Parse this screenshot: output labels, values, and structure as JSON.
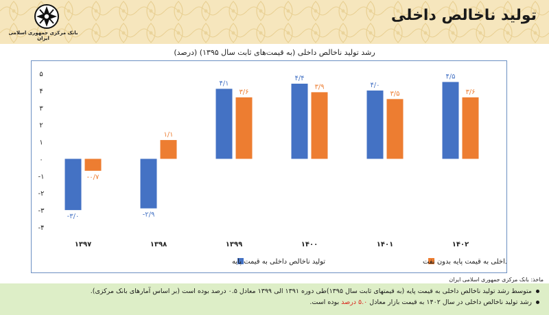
{
  "header": {
    "title": "تولید ناخالص داخلی",
    "bank_name": "بانک مرکزی جمهوری اسلامی ایران"
  },
  "chart_data": {
    "type": "bar",
    "title": "رشد تولید ناخالص داخلی (به قیمت‌های ثابت سال ۱۳۹۵) (درصد)",
    "categories": [
      "۱۳۹۷",
      "۱۳۹۸",
      "۱۳۹۹",
      "۱۴۰۰",
      "۱۴۰۱",
      "۱۴۰۲"
    ],
    "series": [
      {
        "name": "تولید ناخالص داخلی به قیمت پایه",
        "color": "#4472c4",
        "values": [
          -3.0,
          -2.9,
          4.1,
          4.4,
          4.0,
          4.5
        ],
        "labels": [
          "-۳/۰",
          "-۲/۹",
          "۴/۱",
          "۴/۴",
          "۴/۰",
          "۴/۵"
        ]
      },
      {
        "name": "تولید ناخالص داخلی به قیمت پایه بدون نفت",
        "color": "#ed7d31",
        "values": [
          -0.7,
          1.1,
          3.6,
          3.9,
          3.5,
          3.6
        ],
        "labels": [
          "-۰/۷",
          "۱/۱",
          "۳/۶",
          "۳/۹",
          "۳/۵",
          "۳/۶"
        ]
      }
    ],
    "ylim": [
      -4,
      5
    ],
    "yticks": [
      5,
      4,
      3,
      2,
      1,
      0,
      -1,
      -2,
      -3,
      -4
    ],
    "ytick_labels": [
      "۵",
      "۴",
      "۳",
      "۲",
      "۱",
      "۰",
      "-۱",
      "-۲",
      "-۳",
      "-۴"
    ],
    "grid": false,
    "legend": "bottom"
  },
  "source": "ماخذ: بانک مرکزی جمهوری اسلامی ایران",
  "notes": {
    "line1": "متوسط رشد تولید ناخالص داخلی به قیمت پایه (به قیمتهای ثابت سال ۱۳۹۵)طی دوره ۱۳۹۱ الی ۱۳۹۹ معادل ۰.۵ درصد بوده است (بر اساس آمارهای بانک مرکزی).",
    "line2_pre": "رشد تولید ناخالص داخلی در سال ۱۴۰۲ به قیمت بازار معادل",
    "line2_hl": "۵.۰ درصد",
    "line2_post": "بوده است."
  }
}
